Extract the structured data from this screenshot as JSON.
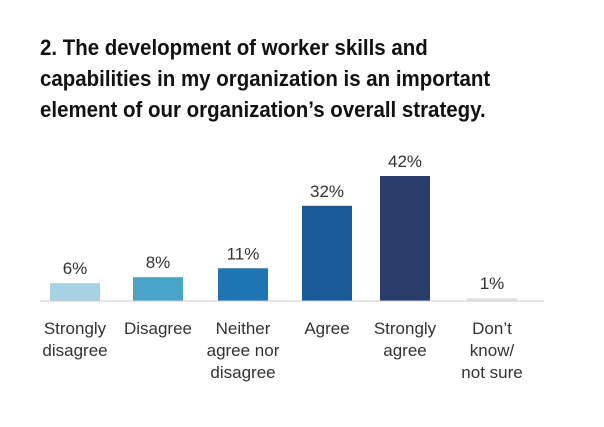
{
  "title_lines": [
    "2. The development of worker skills and",
    "capabilities in my organization is an important",
    "element of our organization’s overall strategy."
  ],
  "chart_data": {
    "type": "bar",
    "title": "2. The development of worker skills and capabilities in my organization is an important element of our organization’s overall strategy.",
    "categories": [
      [
        "Strongly",
        "disagree"
      ],
      [
        "Disagree"
      ],
      [
        "Neither",
        "agree nor",
        "disagree"
      ],
      [
        "Agree"
      ],
      [
        "Strongly",
        "agree"
      ],
      [
        "Don’t",
        "know/",
        "not sure"
      ]
    ],
    "values": [
      6,
      8,
      11,
      32,
      42,
      1
    ],
    "value_labels": [
      "6%",
      "8%",
      "11%",
      "32%",
      "42%",
      "1%"
    ],
    "colors": [
      "#a6d3e3",
      "#4aa3c8",
      "#1f74b2",
      "#1a5a99",
      "#2a3c6a",
      "#e4e4e4"
    ],
    "axis_color": "#cccccc",
    "ylim": [
      0,
      42
    ],
    "grid": false,
    "legend": "none"
  }
}
